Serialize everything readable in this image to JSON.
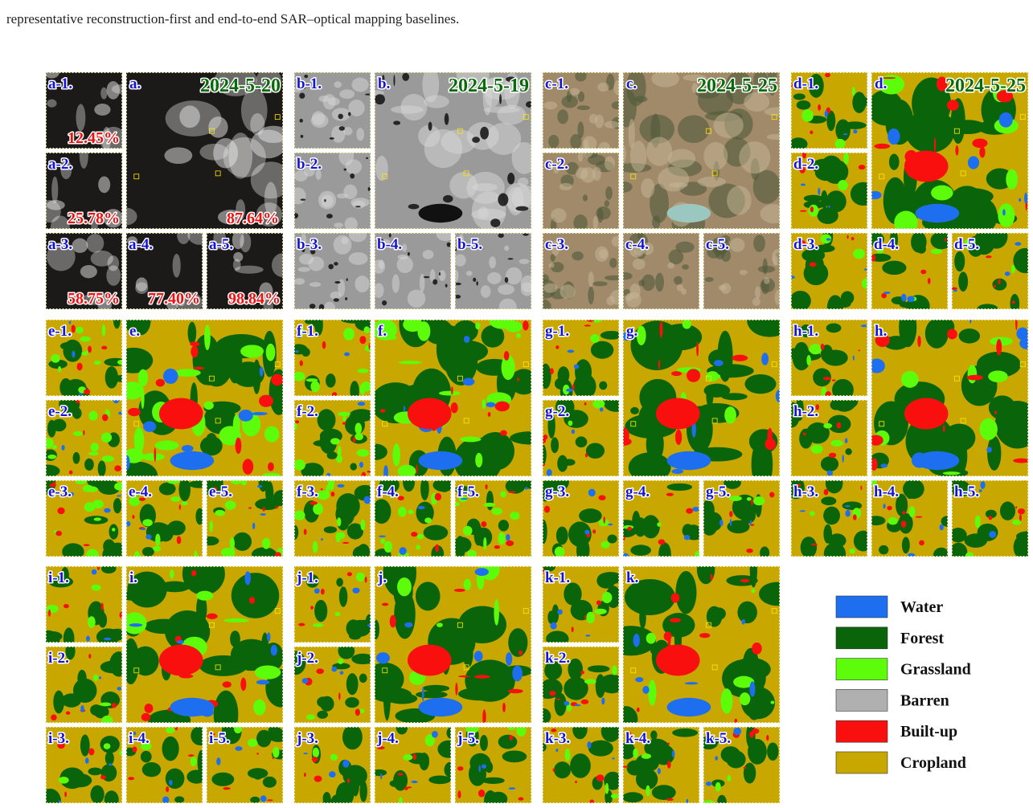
{
  "caption": "representative reconstruction-first and end-to-end SAR–optical mapping baselines.",
  "panels": [
    {
      "label": "a.",
      "date": "2024-5-20",
      "cloud": "87.64%",
      "tiles": [
        {
          "label": "a-1.",
          "cloud": "12.45%"
        },
        {
          "label": "a-2.",
          "cloud": "25.78%"
        },
        {
          "label": "a-3.",
          "cloud": "58.75%"
        },
        {
          "label": "a-4.",
          "cloud": "77.40%"
        },
        {
          "label": "a-5.",
          "cloud": "98.84%"
        }
      ]
    },
    {
      "label": "b.",
      "date": "2024-5-19",
      "tiles": [
        {
          "label": "b-1."
        },
        {
          "label": "b-2."
        },
        {
          "label": "b-3."
        },
        {
          "label": "b-4."
        },
        {
          "label": "b-5."
        }
      ]
    },
    {
      "label": "c.",
      "date": "2024-5-25",
      "tiles": [
        {
          "label": "c-1."
        },
        {
          "label": "c-2."
        },
        {
          "label": "c-3."
        },
        {
          "label": "c-4."
        },
        {
          "label": "c-5."
        }
      ]
    },
    {
      "label": "d.",
      "date": "2024-5-25",
      "tiles": [
        {
          "label": "d-1."
        },
        {
          "label": "d-2."
        },
        {
          "label": "d-3."
        },
        {
          "label": "d-4."
        },
        {
          "label": "d-5."
        }
      ]
    },
    {
      "label": "e.",
      "tiles": [
        {
          "label": "e-1."
        },
        {
          "label": "e-2."
        },
        {
          "label": "e-3."
        },
        {
          "label": "e-4."
        },
        {
          "label": "e-5."
        }
      ]
    },
    {
      "label": "f.",
      "tiles": [
        {
          "label": "f-1."
        },
        {
          "label": "f-2."
        },
        {
          "label": "f-3."
        },
        {
          "label": "f-4."
        },
        {
          "label": "f-5."
        }
      ]
    },
    {
      "label": "g.",
      "tiles": [
        {
          "label": "g-1."
        },
        {
          "label": "g-2."
        },
        {
          "label": "g-3."
        },
        {
          "label": "g-4."
        },
        {
          "label": "g-5."
        }
      ]
    },
    {
      "label": "h.",
      "tiles": [
        {
          "label": "h-1."
        },
        {
          "label": "h-2."
        },
        {
          "label": "h-3."
        },
        {
          "label": "h-4."
        },
        {
          "label": "h-5."
        }
      ]
    },
    {
      "label": "i.",
      "tiles": [
        {
          "label": "i-1."
        },
        {
          "label": "i-2."
        },
        {
          "label": "i-3."
        },
        {
          "label": "i-4."
        },
        {
          "label": "i-5."
        }
      ]
    },
    {
      "label": "j.",
      "tiles": [
        {
          "label": "j-1."
        },
        {
          "label": "j-2."
        },
        {
          "label": "j-3."
        },
        {
          "label": "j-4."
        },
        {
          "label": "j-5."
        }
      ]
    },
    {
      "label": "k.",
      "tiles": [
        {
          "label": "k-1."
        },
        {
          "label": "k-2."
        },
        {
          "label": "k-3."
        },
        {
          "label": "k-4."
        },
        {
          "label": "k-5."
        }
      ]
    }
  ],
  "legend": [
    {
      "label": "Water",
      "color": "#1e6ff0"
    },
    {
      "label": "Forest",
      "color": "#0a640a"
    },
    {
      "label": "Grassland",
      "color": "#5dfc0a"
    },
    {
      "label": "Barren",
      "color": "#b0b0b0"
    },
    {
      "label": "Built-up",
      "color": "#fa0f0f"
    },
    {
      "label": "Cropland",
      "color": "#c8a800"
    }
  ]
}
